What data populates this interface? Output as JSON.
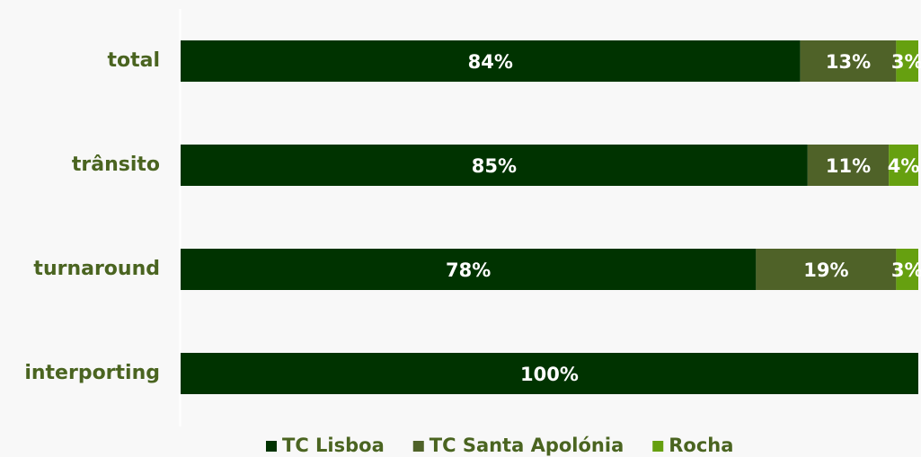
{
  "chart_data": {
    "type": "stacked_barh",
    "categories": [
      "total",
      "trânsito",
      "turnaround",
      "interporting"
    ],
    "series": [
      {
        "name": "TC Lisboa",
        "color": "#003300",
        "values": [
          84,
          85,
          78,
          100
        ],
        "value_labels": [
          "84%",
          "85%",
          "78%",
          "100%"
        ]
      },
      {
        "name": "TC Santa Apolónia",
        "color": "#4f6228",
        "values": [
          13,
          11,
          19,
          0
        ],
        "value_labels": [
          "13%",
          "11%",
          "19%",
          null
        ]
      },
      {
        "name": "Rocha",
        "color": "#66a010",
        "values": [
          3,
          4,
          3,
          0
        ],
        "value_labels": [
          "3%",
          "4%",
          "3%",
          null
        ]
      }
    ],
    "xlim": [
      0,
      100
    ],
    "legend": "bottom"
  }
}
